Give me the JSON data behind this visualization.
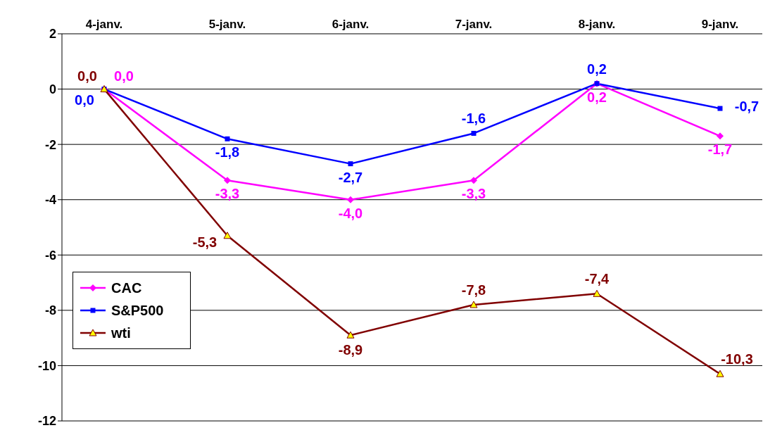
{
  "chart_data": {
    "type": "line",
    "categories": [
      "4-janv.",
      "5-janv.",
      "6-janv.",
      "7-janv.",
      "8-janv.",
      "9-janv."
    ],
    "series": [
      {
        "name": "CAC",
        "color": "#ff00ff",
        "marker": "diamond",
        "values": [
          0.0,
          -3.3,
          -4.0,
          -3.3,
          0.2,
          -1.7
        ],
        "value_labels": [
          "0,0",
          "-3,3",
          "-4,0",
          "-3,3",
          "0,2",
          "-1,7"
        ]
      },
      {
        "name": "S&P500",
        "color": "#0000ff",
        "marker": "square",
        "values": [
          0.0,
          -1.8,
          -2.7,
          -1.6,
          0.2,
          -0.7
        ],
        "value_labels": [
          "0,0",
          "-1,8",
          "-2,7",
          "-1,6",
          "0,2",
          "-0,7"
        ]
      },
      {
        "name": "wti",
        "color": "#800000",
        "marker": "triangle",
        "values": [
          0.0,
          -5.3,
          -8.9,
          -7.8,
          -7.4,
          -10.3
        ],
        "value_labels": [
          "0,0",
          "-5,3",
          "-8,9",
          "-7,8",
          "-7,4",
          "-10,3"
        ]
      }
    ],
    "ylim": [
      -12,
      2
    ],
    "yticks": [
      -12,
      -10,
      -8,
      -6,
      -4,
      -2,
      0,
      2
    ],
    "grid": "y",
    "legend": "left",
    "line_style": "solid"
  }
}
